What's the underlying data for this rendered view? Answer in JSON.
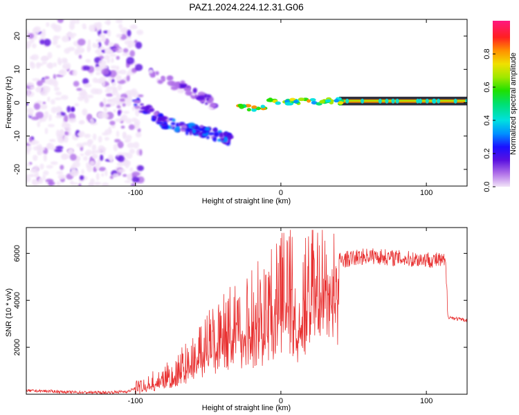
{
  "title": "PAZ1.2024.224.12.31.G06",
  "colorbar": {
    "label": "Normalized spectral amplitude",
    "ticks": [
      "0.0",
      "0.2",
      "0.4",
      "0.6",
      "0.8"
    ],
    "tick_values": [
      0.0,
      0.2,
      0.4,
      0.6,
      0.8
    ]
  },
  "chart_data": [
    {
      "type": "heatmap",
      "title": "",
      "xlabel": "Height of straight line (km)",
      "ylabel": "Frequency (Hz)",
      "xlim": [
        -175,
        128
      ],
      "ylim": [
        -25,
        25
      ],
      "x_ticks": [
        -100,
        0,
        100
      ],
      "x_tick_labels": [
        "-100",
        "0",
        "100"
      ],
      "y_ticks": [
        -20,
        -10,
        0,
        10,
        20
      ],
      "y_tick_labels": [
        "-20",
        "-10",
        "0",
        "10",
        "20"
      ],
      "zlim": [
        0,
        1
      ],
      "description_series": [
        {
          "name": "noise region",
          "x_range": [
            -175,
            -100
          ],
          "y_range": [
            -25,
            25
          ],
          "amplitude": [
            0.0,
            0.2
          ]
        },
        {
          "name": "upper branch",
          "x": [
            -90,
            -80,
            -70,
            -60,
            -50,
            -45
          ],
          "y": [
            9,
            7,
            5,
            3,
            1,
            -1
          ],
          "amplitude": 0.15
        },
        {
          "name": "lower branch",
          "x": [
            -100,
            -90,
            -80,
            -70,
            -60,
            -50,
            -40,
            -35
          ],
          "y": [
            0,
            -3,
            -6,
            -7,
            -8,
            -9,
            -10,
            -11
          ],
          "amplitude": 0.3
        },
        {
          "name": "carrier",
          "x": [
            -30,
            -20,
            -10,
            0,
            20,
            40,
            60,
            80,
            100,
            128
          ],
          "y": [
            -2,
            -1,
            0,
            0.5,
            0.5,
            0.5,
            0.5,
            0.5,
            0.5,
            0.5
          ],
          "amplitude": 0.9
        }
      ]
    },
    {
      "type": "line",
      "title": "",
      "xlabel": "Height of straight line (km)",
      "ylabel": "SNR (10 * v/v)",
      "xlim": [
        -175,
        128
      ],
      "ylim": [
        0,
        7100
      ],
      "x_ticks": [
        -100,
        0,
        100
      ],
      "x_tick_labels": [
        "-100",
        "0",
        "100"
      ],
      "y_ticks": [
        2000,
        4000,
        6000
      ],
      "y_tick_labels": [
        "2000",
        "4000",
        "6000"
      ],
      "series": [
        {
          "color": "#e83030",
          "x": [
            -175,
            -160,
            -140,
            -120,
            -105,
            -95,
            -85,
            -75,
            -65,
            -55,
            -45,
            -35,
            -28,
            -22,
            -18,
            -12,
            -8,
            -3,
            2,
            8,
            12,
            15,
            20,
            30,
            40,
            50,
            60,
            70,
            80,
            90,
            100,
            108,
            113,
            115,
            118,
            122,
            128
          ],
          "y": [
            150,
            130,
            80,
            70,
            120,
            400,
            600,
            900,
            1400,
            2000,
            2600,
            3100,
            3600,
            3300,
            3800,
            4000,
            4300,
            4600,
            4900,
            5300,
            2500,
            4600,
            5200,
            5500,
            5700,
            5800,
            5900,
            5850,
            5800,
            5750,
            5750,
            5700,
            5650,
            3300,
            3250,
            3200,
            3150
          ]
        }
      ]
    }
  ]
}
